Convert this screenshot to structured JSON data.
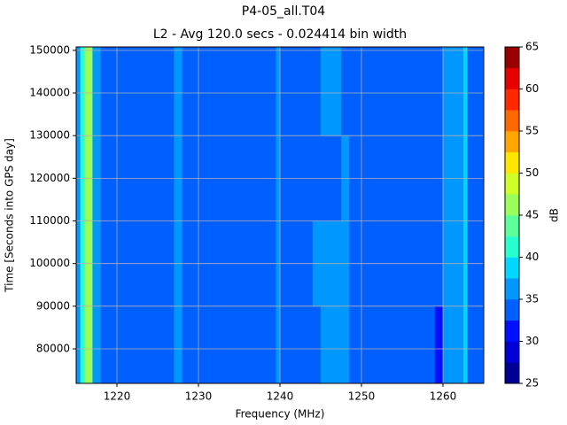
{
  "chart_data": {
    "type": "heatmap",
    "title": "P4-05_all.T04",
    "subtitle": "L2 - Avg 120.0 secs - 0.024414 bin width",
    "x_label": "Frequency (MHz)",
    "y_label": "Time [Seconds into GPS day]",
    "colorbar_label": "dB",
    "xlim": [
      1215,
      1265
    ],
    "ylim": [
      71900,
      150800
    ],
    "xticks": [
      1220,
      1230,
      1240,
      1250,
      1260
    ],
    "yticks": [
      80000,
      90000,
      100000,
      110000,
      120000,
      130000,
      140000,
      150000
    ],
    "grid": true,
    "x_edges": [
      1215,
      1215.5,
      1216,
      1217,
      1218,
      1227,
      1228,
      1239.5,
      1240,
      1244,
      1245,
      1247.5,
      1248.5,
      1259,
      1260,
      1261.5,
      1262.5,
      1263,
      1265
    ],
    "y_edges": [
      71900,
      90000,
      110000,
      130000,
      150800
    ],
    "values": [
      [
        35,
        40,
        45,
        37,
        33,
        36,
        33,
        36,
        33,
        33,
        36,
        36,
        33,
        30,
        36,
        35,
        38,
        33
      ],
      [
        35,
        40,
        45,
        37,
        33,
        36,
        33,
        36,
        33,
        36,
        36,
        36,
        33,
        33,
        36,
        35,
        38,
        33
      ],
      [
        35,
        40,
        45,
        37,
        33,
        36,
        33,
        36,
        33,
        33,
        33,
        36,
        33,
        33,
        36,
        35,
        38,
        33
      ],
      [
        35,
        40,
        45,
        37,
        33,
        36,
        33,
        36,
        33,
        33,
        36,
        33,
        33,
        33,
        36,
        35,
        38,
        33
      ]
    ],
    "levels": [
      25,
      27.5,
      30,
      32.5,
      35,
      37.5,
      40,
      42.5,
      45,
      47.5,
      50,
      52.5,
      55,
      57.5,
      60,
      62.5,
      65
    ],
    "level_colors": [
      "#000096",
      "#0000d6",
      "#0010ff",
      "#0060ff",
      "#0098ff",
      "#00d8ff",
      "#29ffce",
      "#5dff9a",
      "#9aff5d",
      "#ceff29",
      "#ffe600",
      "#ffa700",
      "#ff6800",
      "#ff2900",
      "#e60000",
      "#9a0000"
    ],
    "colorbar_ticks": [
      25,
      30,
      35,
      40,
      45,
      50,
      55,
      60,
      65
    ]
  }
}
